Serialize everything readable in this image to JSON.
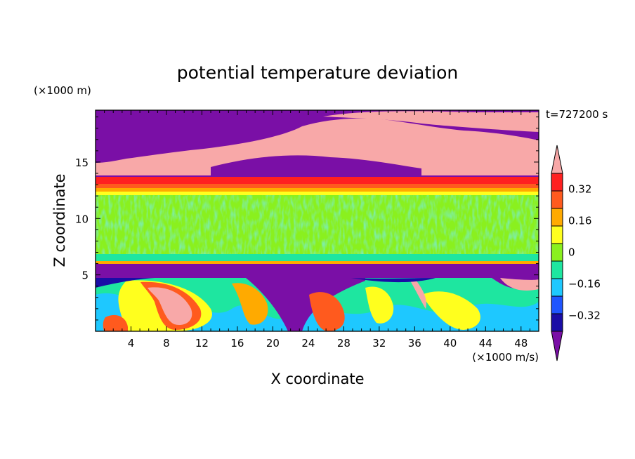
{
  "chart_data": {
    "type": "heatmap",
    "title": "potential temperature deviation",
    "time_label": "t=727200 s",
    "xlabel": "X coordinate",
    "ylabel": "Z coordinate",
    "x_unit": "(×1000 m/s)",
    "y_unit": "(×1000 m)",
    "xlim": [
      0,
      50
    ],
    "ylim": [
      0,
      19.6
    ],
    "x_ticks": [
      4,
      8,
      12,
      16,
      20,
      24,
      28,
      32,
      36,
      40,
      44,
      48
    ],
    "y_ticks": [
      5,
      10,
      15
    ],
    "colorbar": {
      "levels": [
        -0.4,
        -0.32,
        -0.24,
        -0.16,
        -0.08,
        0,
        0.08,
        0.16,
        0.24,
        0.32,
        0.4
      ],
      "tick_labels": [
        "0.32",
        "0.16",
        "0",
        "−0.16",
        "−0.32"
      ],
      "tick_values": [
        0.32,
        0.16,
        0,
        -0.16,
        -0.32
      ],
      "colors": [
        "#7a0fa6",
        "#1a0da6",
        "#1f55ff",
        "#1ec8ff",
        "#1ee6a0",
        "#8af01e",
        "#ffff1e",
        "#ffaa00",
        "#ff5a1e",
        "#ff2020",
        "#f8a8a8"
      ],
      "extend": "both"
    },
    "layers": [
      {
        "z_range": [
          0,
          6
        ],
        "description_value_range": [
          -0.4,
          0.4
        ]
      },
      {
        "z_range": [
          6,
          12.5
        ],
        "dominant_value": 0.04
      },
      {
        "z_range": [
          12.5,
          14
        ],
        "dominant_value": 0.3
      },
      {
        "z_range": [
          14,
          19.6
        ],
        "dominant_value": 0.4
      }
    ]
  }
}
